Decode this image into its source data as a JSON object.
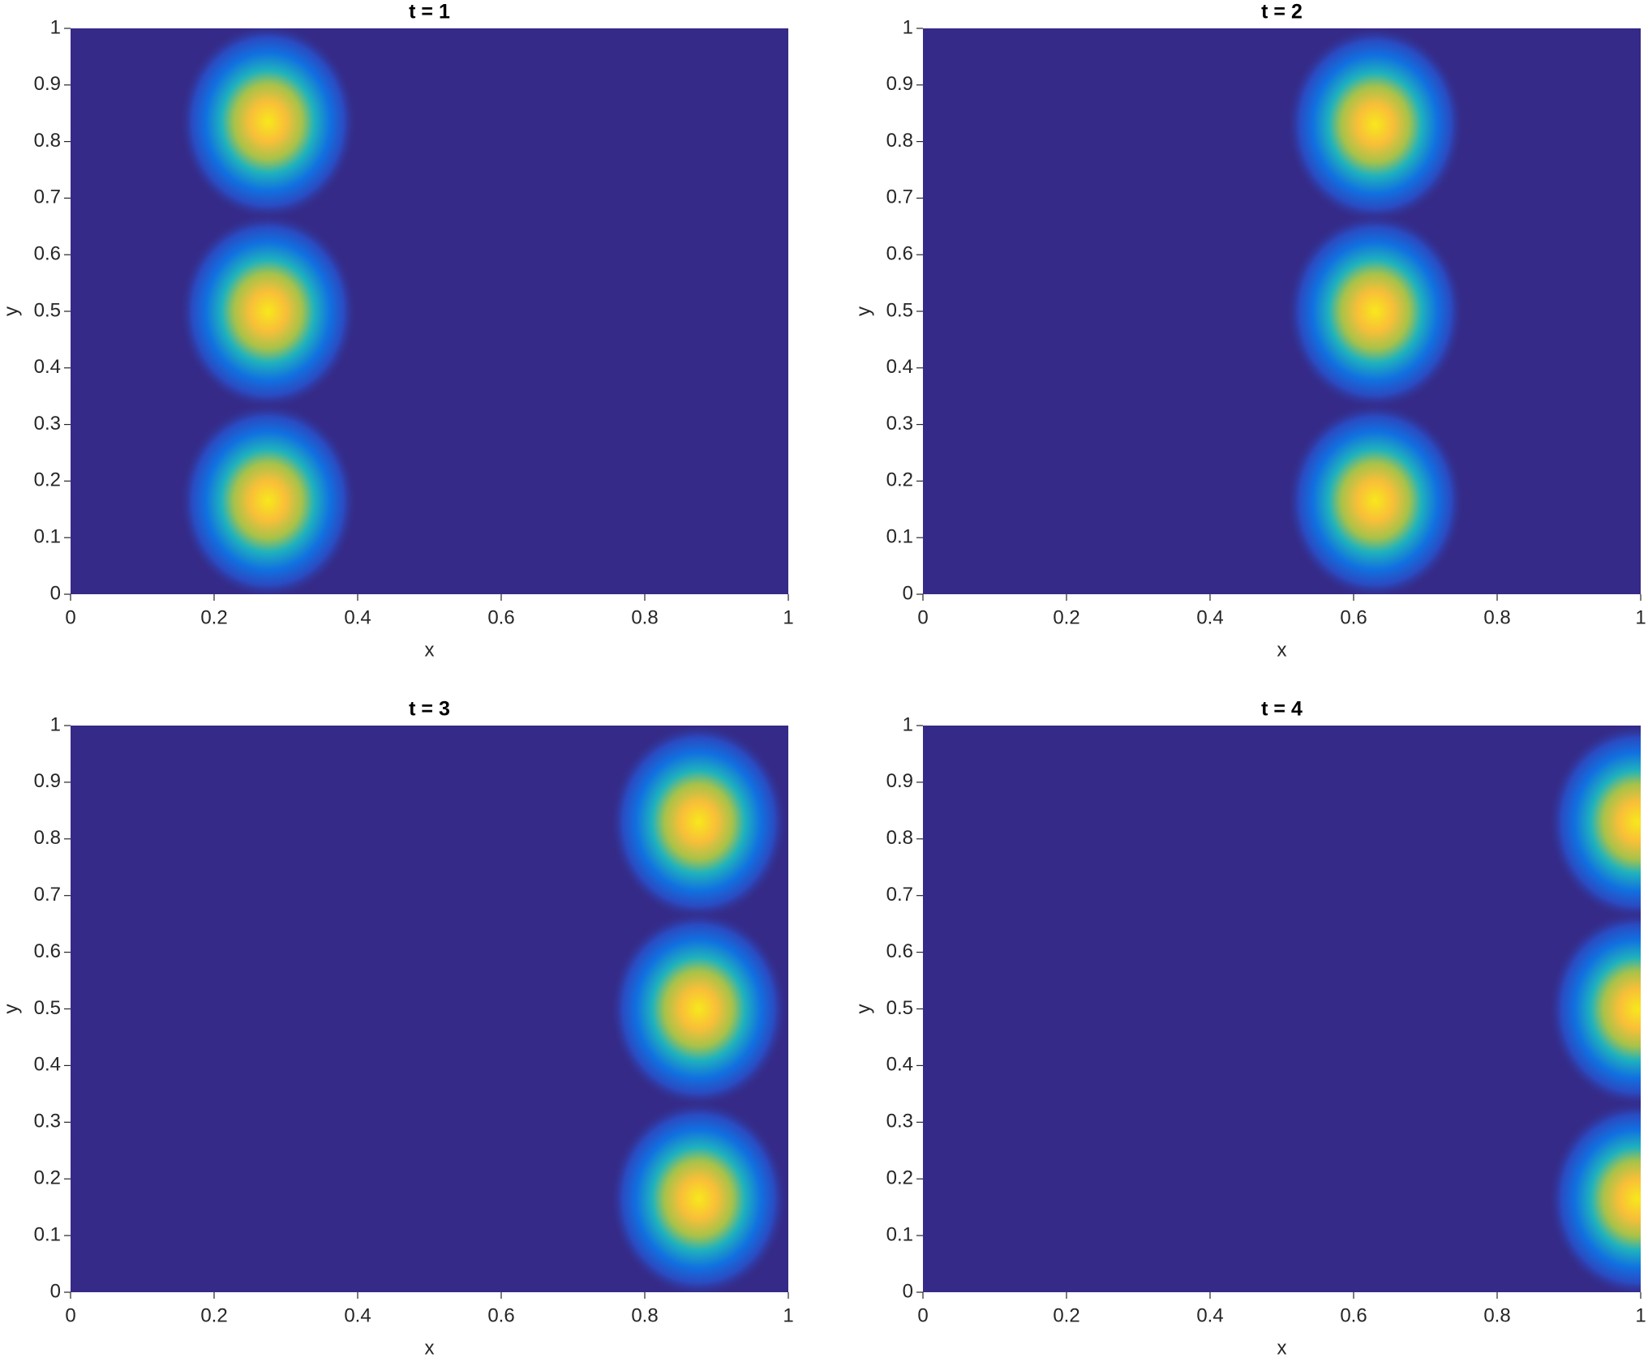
{
  "chart_data": [
    {
      "type": "heatmap",
      "title": "t = 1",
      "xlabel": "x",
      "ylabel": "y",
      "x": [
        0.275,
        0.275,
        0.275
      ],
      "y": [
        0.835,
        0.5,
        0.165
      ],
      "xlim": [
        0,
        1
      ],
      "ylim": [
        0,
        1
      ],
      "xticks": [
        0,
        0.2,
        0.4,
        0.6,
        0.8,
        1
      ],
      "yticks": [
        0,
        0.1,
        0.2,
        0.3,
        0.4,
        0.5,
        0.6,
        0.7,
        0.8,
        0.9,
        1
      ],
      "color": "#352a87"
    },
    {
      "type": "heatmap",
      "title": "t = 2",
      "xlabel": "x",
      "ylabel": "y",
      "x": [
        0.63,
        0.63,
        0.63
      ],
      "y": [
        0.83,
        0.5,
        0.165
      ],
      "xlim": [
        0,
        1
      ],
      "ylim": [
        0,
        1
      ],
      "xticks": [
        0,
        0.2,
        0.4,
        0.6,
        0.8,
        1
      ],
      "yticks": [
        0,
        0.1,
        0.2,
        0.3,
        0.4,
        0.5,
        0.6,
        0.7,
        0.8,
        0.9,
        1
      ],
      "color": "#352a87"
    },
    {
      "type": "heatmap",
      "title": "t = 3",
      "xlabel": "x",
      "ylabel": "y",
      "x": [
        0.875,
        0.875,
        0.875
      ],
      "y": [
        0.83,
        0.5,
        0.165
      ],
      "xlim": [
        0,
        1
      ],
      "ylim": [
        0,
        1
      ],
      "xticks": [
        0,
        0.2,
        0.4,
        0.6,
        0.8,
        1
      ],
      "yticks": [
        0,
        0.1,
        0.2,
        0.3,
        0.4,
        0.5,
        0.6,
        0.7,
        0.8,
        0.9,
        1
      ],
      "color": "#352a87"
    },
    {
      "type": "heatmap",
      "title": "t = 4",
      "xlabel": "x",
      "ylabel": "y",
      "x": [
        0.995,
        0.995,
        0.995
      ],
      "y": [
        0.83,
        0.5,
        0.165
      ],
      "xlim": [
        0,
        1
      ],
      "ylim": [
        0,
        1
      ],
      "xticks": [
        0,
        0.2,
        0.4,
        0.6,
        0.8,
        1
      ],
      "yticks": [
        0,
        0.1,
        0.2,
        0.3,
        0.4,
        0.5,
        0.6,
        0.7,
        0.8,
        0.9,
        1
      ],
      "color": "#352a87"
    }
  ]
}
